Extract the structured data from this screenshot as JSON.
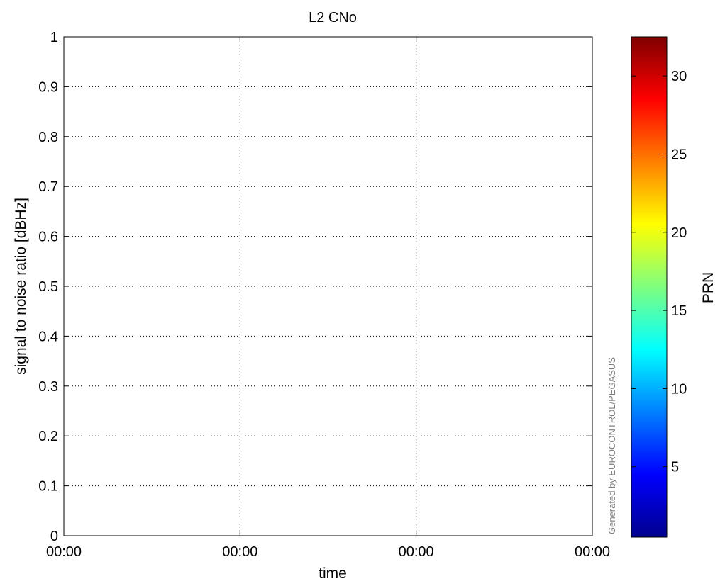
{
  "chart_data": {
    "type": "scatter",
    "title": "L2 CNo",
    "xlabel": "time",
    "ylabel": "signal to noise ratio [dBHz]",
    "x_tick_labels": [
      "00:00",
      "00:00",
      "00:00",
      "00:00"
    ],
    "y_ticks": [
      0,
      0.1,
      0.2,
      0.3,
      0.4,
      0.5,
      0.6,
      0.7,
      0.8,
      0.9,
      1
    ],
    "y_tick_labels": [
      "0",
      "0.1",
      "0.2",
      "0.3",
      "0.4",
      "0.5",
      "0.6",
      "0.7",
      "0.8",
      "0.9",
      "1"
    ],
    "ylim": [
      0,
      1
    ],
    "grid": true,
    "grid_style": "dotted",
    "series": [],
    "colorbar": {
      "label": "PRN",
      "colormap": "jet",
      "range": [
        0.5,
        32.5
      ],
      "ticks": [
        5,
        10,
        15,
        20,
        25,
        30
      ],
      "tick_labels": [
        "5",
        "10",
        "15",
        "20",
        "25",
        "30"
      ]
    },
    "watermark": "Generated by EUROCONTROL/PEGASUS"
  }
}
